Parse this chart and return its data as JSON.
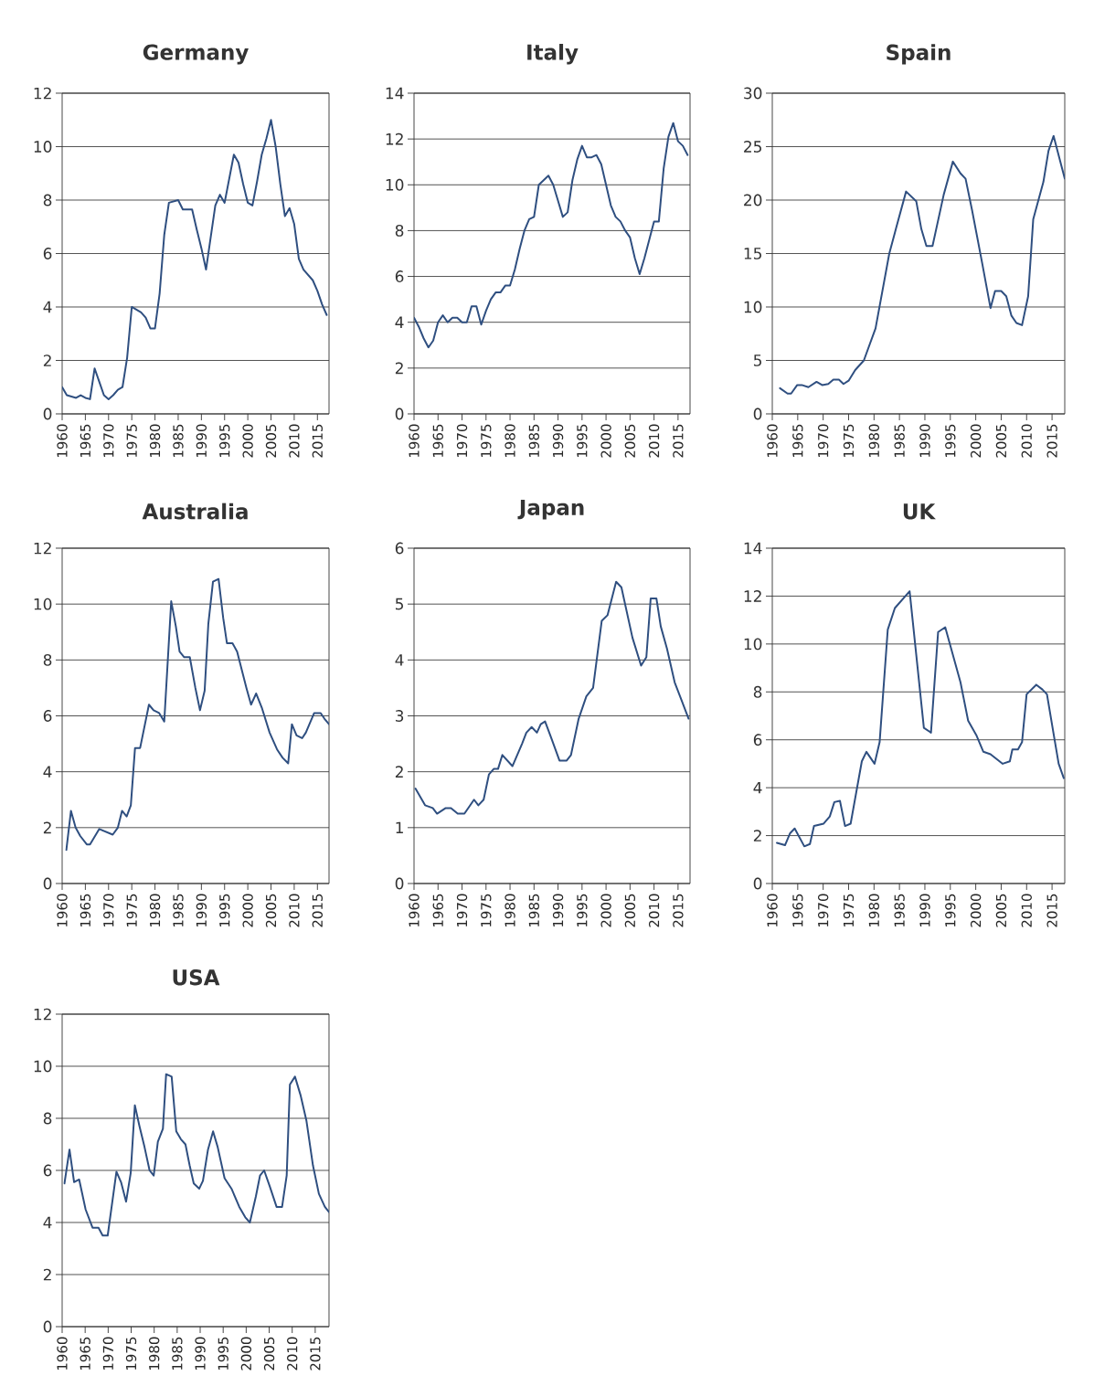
{
  "chart_data": [
    {
      "type": "line",
      "title": "Germany",
      "color": "#2f4f80",
      "grid": "y",
      "xlim": [
        1960,
        2017.5
      ],
      "ylim": [
        0,
        12
      ],
      "xticks": [
        1960,
        1965,
        1970,
        1975,
        1980,
        1985,
        1990,
        1995,
        2000,
        2005,
        2010,
        2015
      ],
      "yticks": [
        0,
        2,
        4,
        6,
        8,
        10,
        12
      ],
      "x": [
        1960,
        1961,
        1962,
        1963,
        1964,
        1965,
        1966,
        1967,
        1968,
        1969,
        1970,
        1971,
        1972,
        1973,
        1974,
        1975,
        1976,
        1977,
        1978,
        1979,
        1980,
        1981,
        1982,
        1983,
        1984,
        1985,
        1986,
        1987,
        1988,
        1989,
        1990,
        1991,
        1992,
        1993,
        1994,
        1995,
        1996,
        1997,
        1998,
        1999,
        2000,
        2001,
        2002,
        2003,
        2004,
        2005,
        2006,
        2007,
        2008,
        2009,
        2010,
        2011,
        2012,
        2013,
        2014,
        2015,
        2016,
        2017
      ],
      "values": [
        1.0,
        0.7,
        0.65,
        0.6,
        0.7,
        0.6,
        0.55,
        1.7,
        1.2,
        0.7,
        0.55,
        0.7,
        0.9,
        1.0,
        2.1,
        4.0,
        3.9,
        3.8,
        3.6,
        3.2,
        3.2,
        4.5,
        6.7,
        7.9,
        7.95,
        8.0,
        7.65,
        7.65,
        7.65,
        6.9,
        6.2,
        5.4,
        6.6,
        7.8,
        8.2,
        7.9,
        8.8,
        9.7,
        9.4,
        8.6,
        7.9,
        7.8,
        8.7,
        9.7,
        10.3,
        11.0,
        10.0,
        8.6,
        7.4,
        7.7,
        7.1,
        5.8,
        5.4,
        5.2,
        5.0,
        4.6,
        4.1,
        3.7
      ]
    },
    {
      "type": "line",
      "title": "Italy",
      "color": "#2f4f80",
      "grid": "y",
      "xlim": [
        1960,
        2017.5
      ],
      "ylim": [
        0,
        14
      ],
      "xticks": [
        1960,
        1965,
        1970,
        1975,
        1980,
        1985,
        1990,
        1995,
        2000,
        2005,
        2010,
        2015
      ],
      "yticks": [
        0,
        2,
        4,
        6,
        8,
        10,
        12,
        14
      ],
      "x": [
        1960,
        1961,
        1962,
        1963,
        1964,
        1965,
        1966,
        1967,
        1968,
        1969,
        1970,
        1971,
        1972,
        1973,
        1974,
        1975,
        1976,
        1977,
        1978,
        1979,
        1980,
        1981,
        1982,
        1983,
        1984,
        1985,
        1986,
        1987,
        1988,
        1989,
        1990,
        1991,
        1992,
        1993,
        1994,
        1995,
        1996,
        1997,
        1998,
        1999,
        2000,
        2001,
        2002,
        2003,
        2004,
        2005,
        2006,
        2007,
        2008,
        2009,
        2010,
        2011,
        2012,
        2013,
        2014,
        2015,
        2016,
        2017
      ],
      "values": [
        4.2,
        3.8,
        3.3,
        2.9,
        3.2,
        4.0,
        4.3,
        4.0,
        4.2,
        4.2,
        4.0,
        4.0,
        4.7,
        4.7,
        3.9,
        4.5,
        5.0,
        5.3,
        5.3,
        5.6,
        5.6,
        6.3,
        7.2,
        8.0,
        8.5,
        8.6,
        10.0,
        10.2,
        10.4,
        10.0,
        9.3,
        8.6,
        8.8,
        10.2,
        11.1,
        11.7,
        11.2,
        11.2,
        11.3,
        10.9,
        10.0,
        9.1,
        8.6,
        8.4,
        8.0,
        7.7,
        6.8,
        6.1,
        6.8,
        7.6,
        8.4,
        8.4,
        10.7,
        12.1,
        12.7,
        11.9,
        11.7,
        11.3
      ]
    },
    {
      "type": "line",
      "title": "Spain",
      "color": "#2f4f80",
      "grid": "y",
      "xlim": [
        1960,
        2017.5
      ],
      "ylim": [
        0,
        30
      ],
      "xticks": [
        1960,
        1965,
        1970,
        1975,
        1980,
        1985,
        1990,
        1995,
        2000,
        2005,
        2010,
        2015
      ],
      "yticks": [
        0,
        5,
        10,
        15,
        20,
        25,
        30
      ],
      "x": [
        1961.5,
        1963,
        1963.7,
        1964.9,
        1965.8,
        1967.1,
        1968.7,
        1969.8,
        1971,
        1972,
        1973.1,
        1974,
        1975,
        1976.3,
        1978,
        1980.3,
        1983,
        1984.3,
        1986.3,
        1988.3,
        1989.3,
        1990.3,
        1991.5,
        1993.7,
        1995.5,
        1997,
        1998,
        1999.3,
        2001.3,
        2002.9,
        2003.8,
        2005,
        2006,
        2007,
        2008,
        2009.1,
        2010.3,
        2011.3,
        2013.3,
        2014.3,
        2015.3,
        2017.5
      ],
      "values": [
        2.4,
        1.9,
        1.9,
        2.7,
        2.7,
        2.5,
        3.0,
        2.7,
        2.8,
        3.2,
        3.2,
        2.8,
        3.1,
        4.1,
        5.0,
        8.0,
        15.0,
        17.3,
        20.8,
        19.9,
        17.3,
        15.7,
        15.7,
        20.5,
        23.6,
        22.5,
        22.0,
        19.0,
        14.0,
        9.9,
        11.5,
        11.5,
        11.0,
        9.2,
        8.5,
        8.3,
        11.0,
        18.2,
        21.7,
        24.6,
        26.0,
        22.0
      ]
    },
    {
      "type": "line",
      "title": "Australia",
      "color": "#2f4f80",
      "grid": "y",
      "xlim": [
        1960,
        2017.5
      ],
      "ylim": [
        0,
        12
      ],
      "xticks": [
        1960,
        1965,
        1970,
        1975,
        1980,
        1985,
        1990,
        1995,
        2000,
        2005,
        2010,
        2015
      ],
      "yticks": [
        0,
        2,
        4,
        6,
        8,
        10,
        12
      ],
      "x": [
        1960.9,
        1961.9,
        1962.9,
        1963.9,
        1965.3,
        1966,
        1968,
        1970.9,
        1972,
        1972.9,
        1973.9,
        1974.8,
        1975.7,
        1976.8,
        1978.7,
        1979.7,
        1980.9,
        1982,
        1983.5,
        1984.5,
        1985.3,
        1986.3,
        1987.5,
        1988.7,
        1989.7,
        1990.7,
        1991.5,
        1992.5,
        1993.7,
        1994.7,
        1995.5,
        1996.7,
        1997.7,
        1999.7,
        2000.7,
        2001.8,
        2003,
        2004.7,
        2006.3,
        2007.5,
        2008.7,
        2009.5,
        2010.5,
        2011.7,
        2012.5,
        2014.3,
        2015.7,
        2016.5,
        2017.5
      ],
      "values": [
        1.2,
        2.6,
        2.0,
        1.7,
        1.4,
        1.4,
        1.95,
        1.75,
        2.0,
        2.6,
        2.4,
        2.8,
        4.85,
        4.85,
        6.4,
        6.2,
        6.1,
        5.8,
        10.1,
        9.2,
        8.3,
        8.1,
        8.1,
        7.0,
        6.2,
        6.9,
        9.3,
        10.8,
        10.9,
        9.5,
        8.6,
        8.6,
        8.3,
        7.0,
        6.4,
        6.8,
        6.3,
        5.4,
        4.8,
        4.5,
        4.3,
        5.7,
        5.3,
        5.2,
        5.4,
        6.1,
        6.1,
        5.9,
        5.7
      ]
    },
    {
      "type": "line",
      "title": "Japan",
      "color": "#2f4f80",
      "grid": "y",
      "xlim": [
        1960,
        2017.5
      ],
      "ylim": [
        0,
        6
      ],
      "xticks": [
        1960,
        1965,
        1970,
        1975,
        1980,
        1985,
        1990,
        1995,
        2000,
        2005,
        2010,
        2015
      ],
      "yticks": [
        0,
        1,
        2,
        3,
        4,
        5,
        6
      ],
      "x": [
        1960.3,
        1962.3,
        1963.9,
        1964.8,
        1966.6,
        1967.7,
        1969.1,
        1970.5,
        1972.5,
        1973.4,
        1974.5,
        1975.6,
        1976.6,
        1977.5,
        1978.4,
        1980.5,
        1982.5,
        1983.4,
        1984.5,
        1985.6,
        1986.4,
        1987.3,
        1988.6,
        1990.3,
        1991.8,
        1992.7,
        1994.3,
        1995.9,
        1997.3,
        1999.1,
        2000.3,
        2002.1,
        2003.2,
        2005.5,
        2007.3,
        2008.4,
        2009.3,
        2010.5,
        2011.4,
        2012.7,
        2014.3,
        2017.2
      ],
      "values": [
        1.7,
        1.4,
        1.35,
        1.25,
        1.35,
        1.35,
        1.25,
        1.25,
        1.5,
        1.4,
        1.5,
        1.95,
        2.05,
        2.05,
        2.3,
        2.1,
        2.5,
        2.7,
        2.8,
        2.7,
        2.85,
        2.9,
        2.6,
        2.2,
        2.2,
        2.3,
        2.95,
        3.35,
        3.5,
        4.7,
        4.8,
        5.4,
        5.3,
        4.4,
        3.9,
        4.05,
        5.1,
        5.1,
        4.6,
        4.2,
        3.6,
        2.95
      ]
    },
    {
      "type": "line",
      "title": "UK",
      "color": "#2f4f80",
      "grid": "y",
      "xlim": [
        1960,
        2017.5
      ],
      "ylim": [
        0,
        14
      ],
      "xticks": [
        1960,
        1965,
        1970,
        1975,
        1980,
        1985,
        1990,
        1995,
        2000,
        2005,
        2010,
        2015
      ],
      "yticks": [
        0,
        2,
        4,
        6,
        8,
        10,
        12,
        14
      ],
      "x": [
        1960.9,
        1962.5,
        1963.5,
        1964.4,
        1966.3,
        1967.4,
        1968.2,
        1970.1,
        1971.3,
        1972.2,
        1973.3,
        1974.3,
        1975.4,
        1977.6,
        1978.5,
        1980.1,
        1981.1,
        1982.7,
        1984.1,
        1987.0,
        1989.8,
        1991.2,
        1992.6,
        1994.0,
        1997.0,
        1998.5,
        2000.1,
        2001.5,
        2002.9,
        2005.3,
        2006.7,
        2007.2,
        2008.3,
        2009.1,
        2010.0,
        2011.9,
        2013.1,
        2014.0,
        2015.5,
        2016.3,
        2017.3
      ],
      "values": [
        1.7,
        1.6,
        2.1,
        2.3,
        1.55,
        1.65,
        2.4,
        2.5,
        2.8,
        3.4,
        3.45,
        2.4,
        2.5,
        5.1,
        5.5,
        5.0,
        5.9,
        10.6,
        11.5,
        12.2,
        6.5,
        6.3,
        10.5,
        10.7,
        8.4,
        6.8,
        6.2,
        5.5,
        5.4,
        5.0,
        5.1,
        5.6,
        5.6,
        5.9,
        7.9,
        8.3,
        8.1,
        7.9,
        6.0,
        5.0,
        4.4
      ]
    },
    {
      "type": "line",
      "title": "USA",
      "color": "#2f4f80",
      "grid": "y",
      "xlim": [
        1960,
        2018
      ],
      "ylim": [
        0,
        12
      ],
      "xticks": [
        1960,
        1965,
        1970,
        1975,
        1980,
        1985,
        1990,
        1995,
        2000,
        2005,
        2010,
        2015
      ],
      "yticks": [
        0,
        2,
        4,
        6,
        8,
        10,
        12
      ],
      "x": [
        1960.5,
        1961.6,
        1962.6,
        1963.7,
        1965.1,
        1966.6,
        1967.9,
        1968.8,
        1969.9,
        1971.8,
        1972.8,
        1973.9,
        1974.9,
        1975.8,
        1976.8,
        1977.9,
        1979,
        1979.9,
        1980.8,
        1981.9,
        1982.6,
        1983.8,
        1984.8,
        1985.8,
        1986.8,
        1987.7,
        1988.6,
        1989.8,
        1990.6,
        1991.7,
        1992.8,
        1993.8,
        1995.3,
        1996.8,
        1998.5,
        1999.8,
        2000.8,
        2002.1,
        2003,
        2003.9,
        2005.1,
        2006.6,
        2007.8,
        2008.8,
        2009.5,
        2010.6,
        2011.8,
        2013.1,
        2014.5,
        2015.8,
        2017.1,
        2018
      ],
      "values": [
        5.5,
        6.8,
        5.55,
        5.65,
        4.5,
        3.8,
        3.8,
        3.5,
        3.5,
        5.95,
        5.55,
        4.8,
        5.9,
        8.5,
        7.7,
        6.9,
        6.0,
        5.8,
        7.1,
        7.6,
        9.7,
        9.6,
        7.5,
        7.2,
        7.0,
        6.2,
        5.5,
        5.3,
        5.6,
        6.8,
        7.5,
        6.9,
        5.7,
        5.3,
        4.6,
        4.2,
        4.0,
        5.0,
        5.8,
        6.0,
        5.4,
        4.6,
        4.6,
        5.8,
        9.3,
        9.6,
        8.9,
        7.9,
        6.2,
        5.1,
        4.6,
        4.4
      ]
    }
  ]
}
